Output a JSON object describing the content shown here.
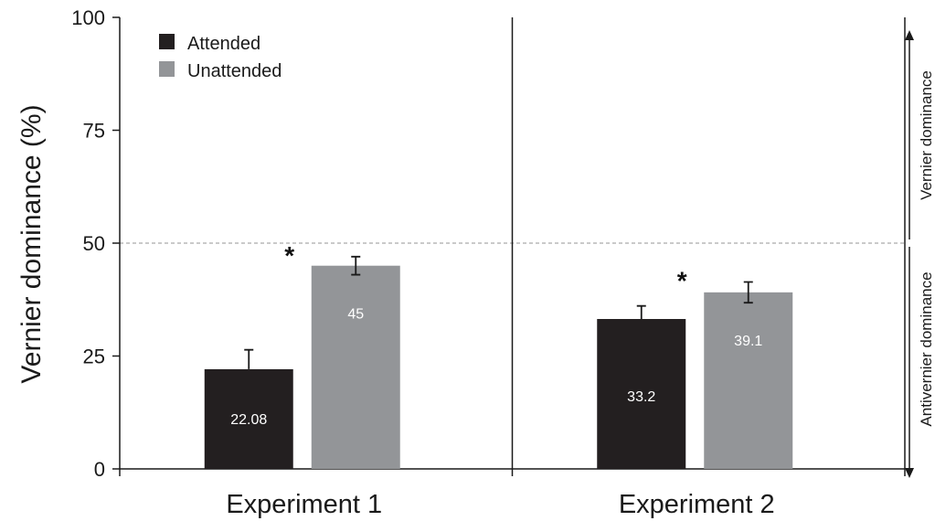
{
  "chart_data": {
    "type": "bar",
    "title": "",
    "ylabel": "Vernier dominance (%)",
    "xlabel": "",
    "ylim": [
      0,
      100
    ],
    "yticks": [
      "0",
      "25",
      "50",
      "75",
      "100"
    ],
    "reference_line": {
      "value": 50,
      "style": "dashed"
    },
    "categories": [
      "Experiment 1",
      "Experiment 2"
    ],
    "series": [
      {
        "name": "Attended",
        "color": "#231f20",
        "values": [
          22.08,
          33.2
        ],
        "errors": [
          4.3,
          2.9
        ],
        "labels": [
          "22.08",
          "33.2"
        ]
      },
      {
        "name": "Unattended",
        "color": "#939598",
        "values": [
          45,
          39.1
        ],
        "errors": [
          2.0,
          2.3
        ],
        "labels": [
          "45",
          "39.1"
        ]
      }
    ],
    "significance": [
      "*",
      "*"
    ],
    "legend": {
      "position": "top-left"
    },
    "side_annotations": {
      "upper": "Vernier dominance",
      "lower": "Antivernier dominance"
    }
  }
}
